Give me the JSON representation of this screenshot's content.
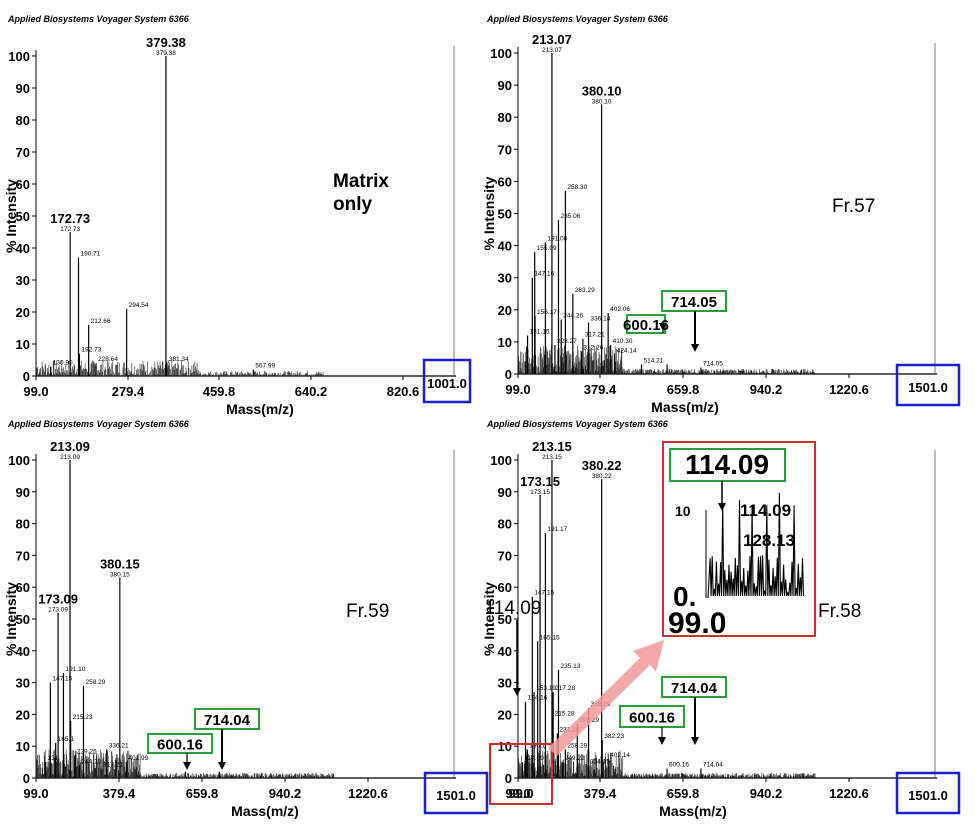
{
  "colors": {
    "ink": "#000000",
    "blue_box": "#1a1fd0",
    "green_box": "#2a9d3a",
    "red_box": "#c8302b",
    "arrow": "#f29a9a"
  },
  "chart_data": [
    {
      "type": "bar",
      "header": "Applied Biosystems Voyager System 6366",
      "sample_label": [
        "Matrix",
        "only"
      ],
      "xlabel": "Mass(m/z)",
      "ylabel": "% Intensity",
      "xlim": [
        99.0,
        1001.0
      ],
      "ylim": [
        0,
        100
      ],
      "xticks": [
        "99.0",
        "279.4",
        "459.8",
        "640.2",
        "820.6"
      ],
      "xmax_label": "1001.0",
      "yticks": [
        "0",
        "10",
        "20",
        "30",
        "40",
        "50",
        "60",
        "70",
        "80",
        "90",
        "100"
      ],
      "peaks": [
        {
          "mz": 130.9,
          "i": 3,
          "label": "130.90"
        },
        {
          "mz": 172.73,
          "i": 45,
          "label": "172.73",
          "top": "172.73"
        },
        {
          "mz": 190.71,
          "i": 37,
          "label": "190.71"
        },
        {
          "mz": 192.73,
          "i": 7,
          "label": "192.73"
        },
        {
          "mz": 212.66,
          "i": 16,
          "label": "212.66"
        },
        {
          "mz": 228.64,
          "i": 4,
          "label": "228.64"
        },
        {
          "mz": 294.54,
          "i": 21,
          "label": "294.54"
        },
        {
          "mz": 379.38,
          "i": 100,
          "label": "379.38",
          "top": "379.38"
        },
        {
          "mz": 381.34,
          "i": 4,
          "label": "381.34"
        },
        {
          "mz": 567.99,
          "i": 2,
          "label": "567.99"
        }
      ]
    },
    {
      "type": "bar",
      "header": "Applied Biosystems Voyager System 6366",
      "sample_label": [
        "Fr.57"
      ],
      "xlabel": "Mass(m/z)",
      "ylabel": "% Intensity",
      "xlim": [
        99.0,
        1501.0
      ],
      "ylim": [
        0,
        100
      ],
      "xticks": [
        "99.0",
        "379.4",
        "659.8",
        "940.2",
        "1220.6"
      ],
      "xmax_label": "1501.0",
      "yticks": [
        "0",
        "10",
        "20",
        "30",
        "40",
        "50",
        "60",
        "70",
        "80",
        "90",
        "100"
      ],
      "boxed_peaks": [
        "600.16",
        "714.05"
      ],
      "peaks": [
        {
          "mz": 131.15,
          "i": 12,
          "label": "131.15"
        },
        {
          "mz": 147.16,
          "i": 30,
          "label": "147.16"
        },
        {
          "mz": 155.09,
          "i": 38,
          "label": "155.09"
        },
        {
          "mz": 156.17,
          "i": 18,
          "label": "156.17"
        },
        {
          "mz": 191.08,
          "i": 41,
          "label": "191.08"
        },
        {
          "mz": 213.07,
          "i": 100,
          "label": "213.07",
          "top": "213.07"
        },
        {
          "mz": 223.27,
          "i": 9,
          "label": "223.27"
        },
        {
          "mz": 235.06,
          "i": 48,
          "label": "235.06"
        },
        {
          "mz": 244.26,
          "i": 17,
          "label": "244.26"
        },
        {
          "mz": 258.3,
          "i": 57,
          "label": "258.30"
        },
        {
          "mz": 283.29,
          "i": 25,
          "label": "283.29"
        },
        {
          "mz": 312.26,
          "i": 7,
          "label": "312.26"
        },
        {
          "mz": 317.21,
          "i": 11,
          "label": "317.21"
        },
        {
          "mz": 336.14,
          "i": 16,
          "label": "336.14"
        },
        {
          "mz": 380.1,
          "i": 84,
          "label": "380.10",
          "top": "380.10"
        },
        {
          "mz": 402.06,
          "i": 19,
          "label": "402.06"
        },
        {
          "mz": 410.3,
          "i": 9,
          "label": "410.30"
        },
        {
          "mz": 424.14,
          "i": 6,
          "label": "424.14"
        },
        {
          "mz": 514.21,
          "i": 3,
          "label": "514.21"
        },
        {
          "mz": 600.16,
          "i": 3
        },
        {
          "mz": 714.05,
          "i": 2,
          "label": "714.05"
        }
      ]
    },
    {
      "type": "bar",
      "header": "Applied Biosystems Voyager System 6366",
      "sample_label": [
        "Fr.59"
      ],
      "xlabel": "Mass(m/z)",
      "ylabel": "% Intensity",
      "xlim": [
        99.0,
        1501.0
      ],
      "ylim": [
        0,
        100
      ],
      "xticks": [
        "99.0",
        "379.4",
        "659.8",
        "940.2",
        "1220.6"
      ],
      "xmax_label": "1501.0",
      "yticks": [
        "0",
        "10",
        "20",
        "30",
        "40",
        "50",
        "60",
        "70",
        "80",
        "90",
        "100"
      ],
      "boxed_peaks": [
        "600.16",
        "714.04"
      ],
      "peaks": [
        {
          "mz": 131,
          "i": 5,
          "label": "131"
        },
        {
          "mz": 147.15,
          "i": 30,
          "label": "147.15"
        },
        {
          "mz": 165,
          "i": 11,
          "label": "165.1"
        },
        {
          "mz": 173.09,
          "i": 52,
          "label": "173.09",
          "top": "173.09"
        },
        {
          "mz": 191.1,
          "i": 33,
          "label": "191.10"
        },
        {
          "mz": 213.09,
          "i": 100,
          "label": "213.09",
          "top": "213.09"
        },
        {
          "mz": 215.23,
          "i": 18,
          "label": "215.23"
        },
        {
          "mz": 229.25,
          "i": 7,
          "label": "229.25"
        },
        {
          "mz": 244.25,
          "i": 4,
          "label": "244.25"
        },
        {
          "mz": 258.29,
          "i": 29,
          "label": "258.29"
        },
        {
          "mz": 317.21,
          "i": 3,
          "label": "317.21"
        },
        {
          "mz": 336.21,
          "i": 9,
          "label": "336.21"
        },
        {
          "mz": 380.15,
          "i": 63,
          "label": "380.15",
          "top": "380.15"
        },
        {
          "mz": 401.99,
          "i": 5,
          "label": "401.99"
        },
        {
          "mz": 600.16,
          "i": 2
        },
        {
          "mz": 714.04,
          "i": 2
        }
      ]
    },
    {
      "type": "bar",
      "header": "Applied Biosystems Voyager System 6366",
      "sample_label": [
        "Fr.58"
      ],
      "xlabel": "Mass(m/z)",
      "ylabel": "% Intensity",
      "xlim": [
        99.0,
        1501.0
      ],
      "ylim": [
        0,
        100
      ],
      "xticks": [
        "99.0",
        "379.4",
        "659.8",
        "940.2",
        "1220.6"
      ],
      "xmax_label": "1501.0",
      "yticks": [
        "0",
        "10",
        "20",
        "30",
        "40",
        "50",
        "60",
        "70",
        "80",
        "90",
        "100"
      ],
      "boxed_peaks": [
        "600.16",
        "714.04"
      ],
      "left_arrow_label": "114.09",
      "peaks": [
        {
          "mz": 114.09,
          "i": 5,
          "label": "114.09"
        },
        {
          "mz": 124.16,
          "i": 24,
          "label": "124.16"
        },
        {
          "mz": 130.1,
          "i": 9,
          "label": "130.1"
        },
        {
          "mz": 147.15,
          "i": 57,
          "label": "147.15"
        },
        {
          "mz": 153.19,
          "i": 27,
          "label": "153.19"
        },
        {
          "mz": 165.15,
          "i": 43,
          "label": "165.15"
        },
        {
          "mz": 173.15,
          "i": 89,
          "label": "173.15",
          "top": "173.15"
        },
        {
          "mz": 191.17,
          "i": 77,
          "label": "191.17"
        },
        {
          "mz": 213.15,
          "i": 100,
          "label": "213.15",
          "top": "213.15"
        },
        {
          "mz": 215.28,
          "i": 19,
          "label": "215.28"
        },
        {
          "mz": 217.28,
          "i": 27,
          "label": "217.28"
        },
        {
          "mz": 231.24,
          "i": 14,
          "label": "231.24"
        },
        {
          "mz": 235.13,
          "i": 34,
          "label": "235.13"
        },
        {
          "mz": 249.22,
          "i": 5,
          "label": "249.22"
        },
        {
          "mz": 258.29,
          "i": 9,
          "label": "258.29"
        },
        {
          "mz": 298.29,
          "i": 17,
          "label": "298.29"
        },
        {
          "mz": 334.15,
          "i": 4,
          "label": "334.15"
        },
        {
          "mz": 336.29,
          "i": 22,
          "label": "336.29"
        },
        {
          "mz": 380.22,
          "i": 94,
          "label": "380.22",
          "top": "380.22"
        },
        {
          "mz": 382.23,
          "i": 12,
          "label": "382.23"
        },
        {
          "mz": 402.14,
          "i": 6,
          "label": "402.14"
        },
        {
          "mz": 600.16,
          "i": 3,
          "label": "600.16"
        },
        {
          "mz": 714.04,
          "i": 3,
          "label": "714.04"
        }
      ],
      "inset": {
        "boxed_label": "114.09",
        "labels": [
          "114.09",
          "128.13"
        ],
        "ytick": "10",
        "ymin_label": "0.",
        "xmin_label": "99.0"
      }
    }
  ]
}
